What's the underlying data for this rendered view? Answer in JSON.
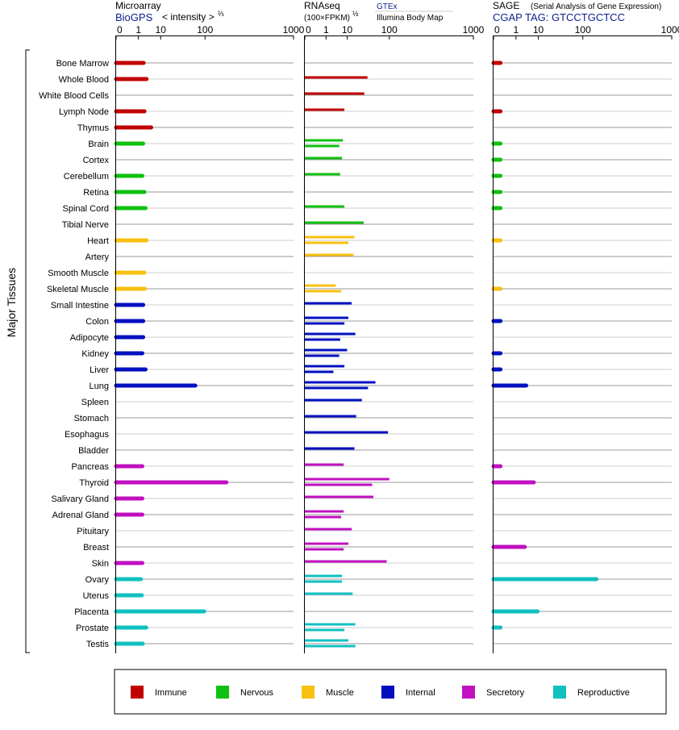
{
  "panels": {
    "microarray": {
      "title": "Microarray",
      "subtitle_link": "BioGPS",
      "subtitle_rest": "< intensity >",
      "superscript": "⅔"
    },
    "rnaseq": {
      "title": "RNAseq",
      "subtitle": "(100×FPKM)",
      "superscript": "½",
      "source_link": "GTEx",
      "source_2": "Illumina Body Map"
    },
    "sage": {
      "title": "SAGE",
      "title_note": "(Serial Analysis of Gene Expression)",
      "tag_line": "CGAP TAG: GTCCTGCTCC"
    }
  },
  "y_axis_label": "Major Tissues",
  "chart_data": {
    "type": "bar",
    "xscale": "power",
    "xticks": [
      "0",
      "1",
      "10",
      "100",
      "1000"
    ],
    "xlim": [
      0,
      1000
    ],
    "categories": [
      "Bone Marrow",
      "Whole Blood",
      "White Blood Cells",
      "Lymph Node",
      "Thymus",
      "Brain",
      "Cortex",
      "Cerebellum",
      "Retina",
      "Spinal Cord",
      "Tibial Nerve",
      "Heart",
      "Artery",
      "Smooth Muscle",
      "Skeletal Muscle",
      "Small Intestine",
      "Colon",
      "Adipocyte",
      "Kidney",
      "Liver",
      "Lung",
      "Spleen",
      "Stomach",
      "Esophagus",
      "Bladder",
      "Pancreas",
      "Thyroid",
      "Salivary Gland",
      "Adrenal Gland",
      "Pituitary",
      "Breast",
      "Skin",
      "Ovary",
      "Uterus",
      "Placenta",
      "Prostate",
      "Testis"
    ],
    "groups": [
      "Immune",
      "Immune",
      "Immune",
      "Immune",
      "Immune",
      "Nervous",
      "Nervous",
      "Nervous",
      "Nervous",
      "Nervous",
      "Nervous",
      "Muscle",
      "Muscle",
      "Muscle",
      "Muscle",
      "Internal",
      "Internal",
      "Internal",
      "Internal",
      "Internal",
      "Internal",
      "Internal",
      "Internal",
      "Internal",
      "Internal",
      "Secretory",
      "Secretory",
      "Secretory",
      "Secretory",
      "Secretory",
      "Secretory",
      "Secretory",
      "Reproductive",
      "Reproductive",
      "Reproductive",
      "Reproductive",
      "Reproductive"
    ],
    "legend": [
      {
        "name": "Immune",
        "color": "#c00000"
      },
      {
        "name": "Nervous",
        "color": "#10c010"
      },
      {
        "name": "Muscle",
        "color": "#f8c010"
      },
      {
        "name": "Internal",
        "color": "#0010c0"
      },
      {
        "name": "Secretory",
        "color": "#c010c0"
      },
      {
        "name": "Reproductive",
        "color": "#10c0c0"
      }
    ],
    "series": [
      {
        "name": "Microarray",
        "values": [
          2.0,
          2.8,
          null,
          2.2,
          4.5,
          1.9,
          null,
          1.7,
          2.2,
          2.5,
          null,
          2.8,
          null,
          2.2,
          2.3,
          1.9,
          1.9,
          1.9,
          1.7,
          2.5,
          68,
          null,
          null,
          null,
          null,
          1.7,
          205,
          1.7,
          1.7,
          null,
          null,
          1.7,
          1.4,
          1.6,
          97,
          2.7,
          1.8
        ]
      },
      {
        "name": "RNAseq",
        "values": [
          [],
          [
            37
          ],
          [
            31
          ],
          [
            8
          ],
          [],
          [
            7,
            5
          ],
          [
            6.5
          ],
          [
            5.5
          ],
          [],
          [
            8
          ],
          [
            30
          ],
          [
            17,
            11
          ],
          [
            16
          ],
          [],
          [
            3.5,
            6
          ],
          [
            14
          ],
          [
            11,
            8
          ],
          [
            18,
            5.5
          ],
          [
            10,
            5
          ],
          [
            8,
            2.7
          ],
          [
            55,
            38
          ],
          [
            27
          ],
          [
            19
          ],
          [
            95
          ],
          [
            17
          ],
          [
            7.5
          ],
          [
            100,
            47
          ],
          [
            50
          ],
          [
            7.5,
            6
          ],
          [
            14
          ],
          [
            11,
            7.5
          ],
          [
            90
          ],
          [
            6.5,
            6.5
          ],
          [
            15
          ],
          [],
          [
            18,
            8
          ],
          [
            11,
            18
          ]
        ]
      },
      {
        "name": "SAGE",
        "values": [
          0.02,
          null,
          null,
          0.02,
          null,
          0.02,
          0.02,
          0.02,
          0.02,
          0.02,
          null,
          0.02,
          null,
          null,
          0.02,
          null,
          0.02,
          null,
          0.02,
          0.02,
          3.5,
          null,
          null,
          null,
          null,
          0.02,
          7,
          null,
          null,
          null,
          3,
          null,
          160,
          null,
          9.5,
          0.02,
          null
        ]
      }
    ]
  }
}
